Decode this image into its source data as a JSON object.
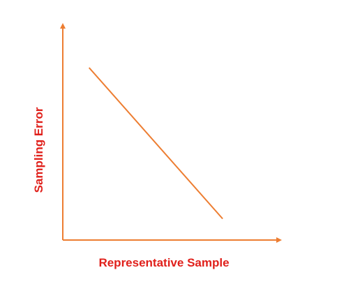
{
  "chart_data": {
    "type": "line",
    "title": "",
    "xlabel": "Representative Sample",
    "ylabel": "Sampling Error",
    "grid": false,
    "legend": "none",
    "xlim": [
      0,
      10
    ],
    "ylim": [
      0,
      10
    ],
    "series": [
      {
        "x": [
          1.3,
          7.9
        ],
        "values": [
          8.1,
          1.0
        ]
      }
    ],
    "colors": {
      "axis": "#ED7D31",
      "line": "#ED7D31",
      "label": "#E0201B"
    }
  }
}
